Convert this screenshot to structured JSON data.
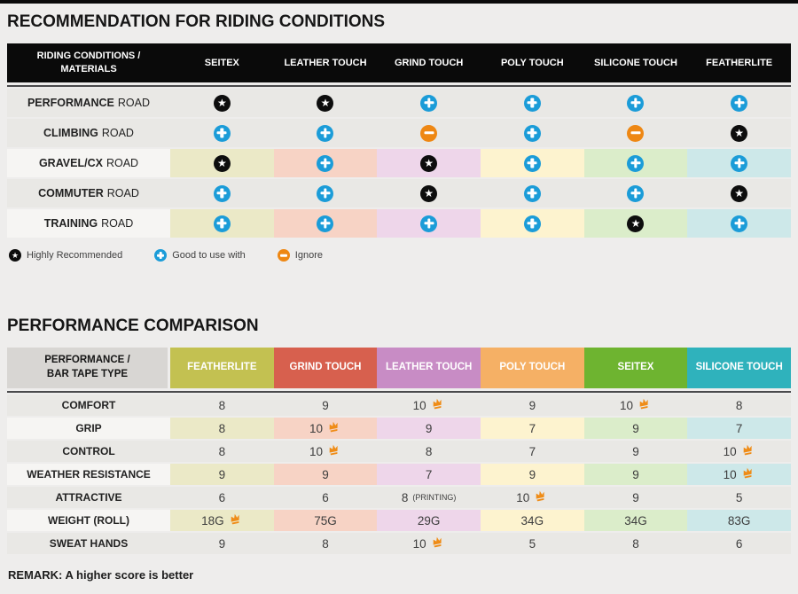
{
  "palette": {
    "page_bg": "#eeedec",
    "top_bar": "#0a0a0a",
    "row_gray": "#e9e8e5",
    "row_label_light": "#f6f5f3",
    "header1_bg": "#0a0a0a",
    "header1_text": "#ffffff",
    "header2_corner_bg": "#d8d6d3",
    "separator_line": "#4a4a4c",
    "icon_star": "#0d0d0d",
    "icon_plus": "#1b9cd8",
    "icon_minus": "#ee8713",
    "crown": "#ef8c17",
    "pale_columns": [
      "#ebe9c7",
      "#f7d3c5",
      "#eed6ea",
      "#fdf3cf",
      "#dbedca",
      "#cde8e9"
    ],
    "value_text": "#3d3d3d"
  },
  "chart_data": [
    {
      "type": "table",
      "title": "RECOMMENDATION FOR RIDING CONDITIONS",
      "corner_line1": "RIDING CONDITIONS /",
      "corner_line2": "MATERIALS",
      "columns": [
        "SEITEX",
        "LEATHER TOUCH",
        "GRIND TOUCH",
        "POLY TOUCH",
        "SILICONE TOUCH",
        "FEATHERLITE"
      ],
      "rows": [
        {
          "label_strong": "PERFORMANCE",
          "label_rest": "ROAD",
          "colored": false,
          "ratings": [
            "star",
            "star",
            "plus",
            "plus",
            "plus",
            "plus"
          ]
        },
        {
          "label_strong": "CLIMBING",
          "label_rest": "ROAD",
          "colored": false,
          "ratings": [
            "plus",
            "plus",
            "minus",
            "plus",
            "minus",
            "star"
          ]
        },
        {
          "label_strong": "GRAVEL/CX",
          "label_rest": "ROAD",
          "colored": true,
          "ratings": [
            "star",
            "plus",
            "star",
            "plus",
            "plus",
            "plus"
          ]
        },
        {
          "label_strong": "COMMUTER",
          "label_rest": "ROAD",
          "colored": false,
          "ratings": [
            "plus",
            "plus",
            "star",
            "plus",
            "plus",
            "star"
          ]
        },
        {
          "label_strong": "TRAINING",
          "label_rest": "ROAD",
          "colored": true,
          "ratings": [
            "plus",
            "plus",
            "plus",
            "plus",
            "star",
            "plus"
          ]
        }
      ],
      "legend": [
        {
          "icon": "star",
          "label": "Highly Recommended"
        },
        {
          "icon": "plus",
          "label": "Good to use with"
        },
        {
          "icon": "minus",
          "label": "Ignore"
        }
      ]
    },
    {
      "type": "table",
      "title": "PERFORMANCE COMPARISON",
      "corner_line1": "PERFORMANCE /",
      "corner_line2": "BAR TAPE TYPE",
      "columns": [
        {
          "label": "FEATHERLITE",
          "color": "#c3c151"
        },
        {
          "label": "GRIND TOUCH",
          "color": "#d7604e"
        },
        {
          "label": "LEATHER TOUCH",
          "color": "#c88cc5"
        },
        {
          "label": "POLY TOUCH",
          "color": "#f5b065"
        },
        {
          "label": "SEITEX",
          "color": "#6eb430"
        },
        {
          "label": "SILICONE TOUCH",
          "color": "#2fb2bc"
        }
      ],
      "rows": [
        {
          "label": "COMFORT",
          "colored": false,
          "values": [
            {
              "text": "8"
            },
            {
              "text": "9"
            },
            {
              "text": "10",
              "crown": true
            },
            {
              "text": "9"
            },
            {
              "text": "10",
              "crown": true
            },
            {
              "text": "8"
            }
          ]
        },
        {
          "label": "GRIP",
          "colored": true,
          "values": [
            {
              "text": "8"
            },
            {
              "text": "10",
              "crown": true
            },
            {
              "text": "9"
            },
            {
              "text": "7"
            },
            {
              "text": "9"
            },
            {
              "text": "7"
            }
          ]
        },
        {
          "label": "CONTROL",
          "colored": false,
          "values": [
            {
              "text": "8"
            },
            {
              "text": "10",
              "crown": true
            },
            {
              "text": "8"
            },
            {
              "text": "7"
            },
            {
              "text": "9"
            },
            {
              "text": "10",
              "crown": true
            }
          ]
        },
        {
          "label": "WEATHER RESISTANCE",
          "colored": true,
          "values": [
            {
              "text": "9"
            },
            {
              "text": "9"
            },
            {
              "text": "7"
            },
            {
              "text": "9"
            },
            {
              "text": "9"
            },
            {
              "text": "10",
              "crown": true
            }
          ]
        },
        {
          "label": "ATTRACTIVE",
          "colored": false,
          "values": [
            {
              "text": "6"
            },
            {
              "text": "6"
            },
            {
              "text": "8",
              "note": "(PRINTING)"
            },
            {
              "text": "10",
              "crown": true
            },
            {
              "text": "9"
            },
            {
              "text": "5"
            }
          ]
        },
        {
          "label": "WEIGHT (ROLL)",
          "colored": true,
          "values": [
            {
              "text": "18G",
              "crown": true
            },
            {
              "text": "75G"
            },
            {
              "text": "29G"
            },
            {
              "text": "34G"
            },
            {
              "text": "34G"
            },
            {
              "text": "83G"
            }
          ]
        },
        {
          "label": "SWEAT HANDS",
          "colored": false,
          "values": [
            {
              "text": "9"
            },
            {
              "text": "8"
            },
            {
              "text": "10",
              "crown": true
            },
            {
              "text": "5"
            },
            {
              "text": "8"
            },
            {
              "text": "6"
            }
          ]
        }
      ],
      "remark": "REMARK: A higher score is better"
    }
  ]
}
